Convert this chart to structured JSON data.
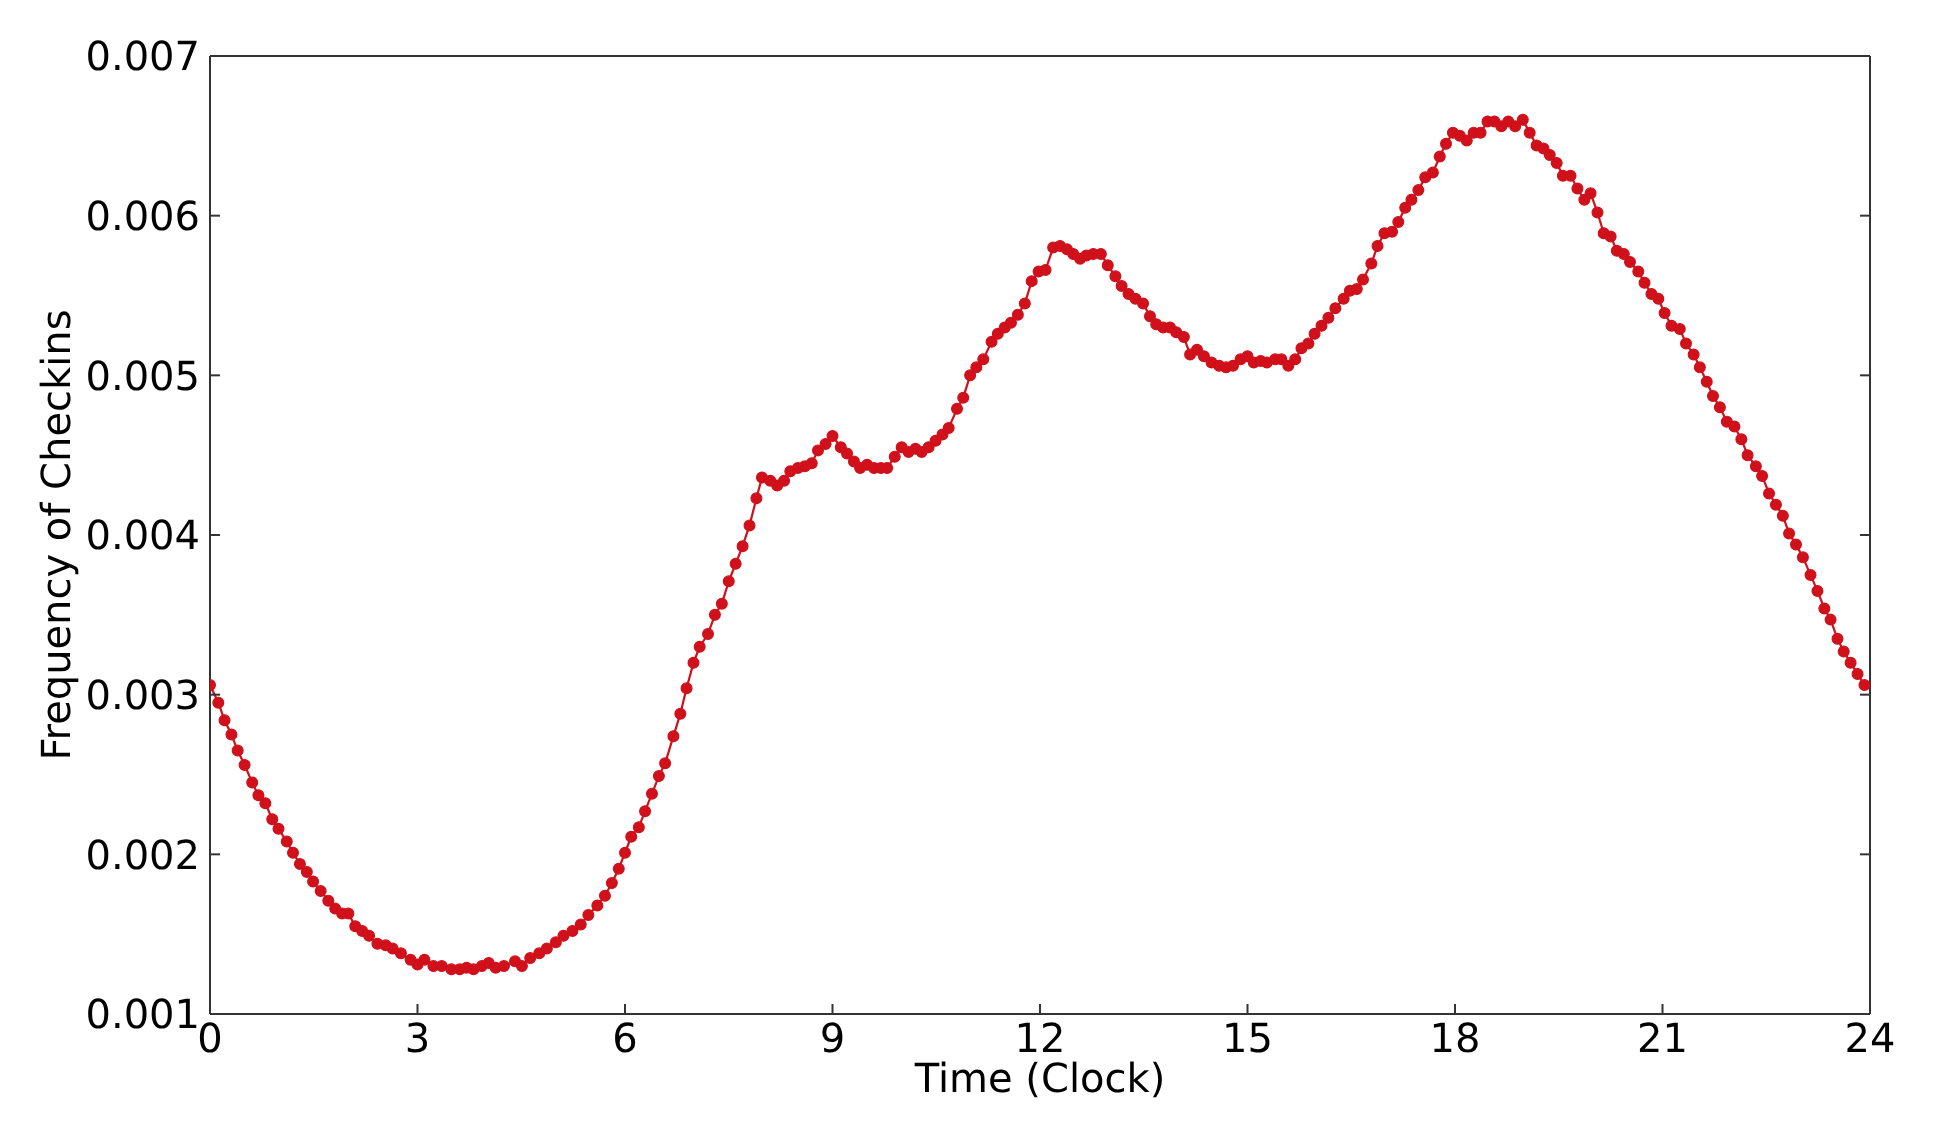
{
  "chart_data": {
    "type": "line",
    "xlabel": "Time (Clock)",
    "ylabel": "Frequency of Checkins",
    "x": [
      0,
      0.12,
      0.21,
      0.31,
      0.4,
      0.5,
      0.61,
      0.7,
      0.8,
      0.9,
      0.99,
      1.11,
      1.2,
      1.3,
      1.4,
      1.49,
      1.6,
      1.71,
      1.81,
      1.91,
      2.0,
      2.1,
      2.2,
      2.3,
      2.42,
      2.54,
      2.64,
      2.76,
      2.9,
      3.0,
      3.1,
      3.23,
      3.35,
      3.49,
      3.61,
      3.71,
      3.81,
      3.93,
      4.03,
      4.13,
      4.25,
      4.41,
      4.51,
      4.63,
      4.76,
      4.87,
      5.0,
      5.11,
      5.24,
      5.36,
      5.47,
      5.6,
      5.71,
      5.81,
      5.91,
      6.0,
      6.09,
      6.2,
      6.29,
      6.39,
      6.49,
      6.58,
      6.7,
      6.8,
      6.89,
      6.99,
      7.08,
      7.2,
      7.3,
      7.4,
      7.5,
      7.6,
      7.7,
      7.8,
      7.9,
      7.98,
      8.1,
      8.2,
      8.3,
      8.39,
      8.5,
      8.6,
      8.7,
      8.79,
      8.9,
      9.0,
      9.12,
      9.21,
      9.31,
      9.4,
      9.5,
      9.6,
      9.7,
      9.79,
      9.9,
      10.0,
      10.1,
      10.2,
      10.29,
      10.39,
      10.49,
      10.59,
      10.68,
      10.8,
      10.89,
      10.99,
      11.08,
      11.18,
      11.3,
      11.39,
      11.49,
      11.58,
      11.68,
      11.78,
      11.88,
      11.98,
      12.08,
      12.19,
      12.29,
      12.39,
      12.48,
      12.58,
      12.67,
      12.77,
      12.88,
      12.98,
      13.09,
      13.18,
      13.28,
      13.38,
      13.49,
      13.59,
      13.68,
      13.78,
      13.88,
      13.97,
      14.08,
      14.17,
      14.27,
      14.37,
      14.48,
      14.59,
      14.69,
      14.79,
      14.9,
      15.0,
      15.09,
      15.19,
      15.28,
      15.4,
      15.49,
      15.59,
      15.69,
      15.78,
      15.88,
      15.97,
      16.07,
      16.17,
      16.27,
      16.39,
      16.48,
      16.58,
      16.67,
      16.79,
      16.88,
      16.98,
      17.09,
      17.18,
      17.28,
      17.37,
      17.47,
      17.57,
      17.68,
      17.78,
      17.87,
      17.97,
      18.07,
      18.17,
      18.27,
      18.37,
      18.47,
      18.57,
      18.67,
      18.77,
      18.87,
      18.98,
      19.08,
      19.18,
      19.28,
      19.37,
      19.47,
      19.56,
      19.67,
      19.77,
      19.87,
      19.96,
      20.06,
      20.15,
      20.25,
      20.34,
      20.44,
      20.53,
      20.65,
      20.74,
      20.84,
      20.94,
      21.03,
      21.13,
      21.25,
      21.34,
      21.45,
      21.54,
      21.64,
      21.73,
      21.83,
      21.93,
      22.04,
      22.14,
      22.23,
      22.35,
      22.44,
      22.54,
      22.64,
      22.74,
      22.83,
      22.93,
      23.03,
      23.14,
      23.24,
      23.34,
      23.43,
      23.53,
      23.62,
      23.72,
      23.82,
      23.92
    ],
    "series": [
      {
        "color": "#d0101a",
        "values": [
          0.00306,
          0.00295,
          0.00284,
          0.00275,
          0.00265,
          0.00256,
          0.00245,
          0.00237,
          0.00232,
          0.00222,
          0.00216,
          0.00208,
          0.00201,
          0.00194,
          0.00189,
          0.00183,
          0.00177,
          0.00171,
          0.00166,
          0.00163,
          0.00163,
          0.00155,
          0.00152,
          0.00149,
          0.00144,
          0.00143,
          0.00141,
          0.00138,
          0.00134,
          0.00131,
          0.00134,
          0.0013,
          0.0013,
          0.00128,
          0.00128,
          0.00129,
          0.00128,
          0.0013,
          0.00132,
          0.00129,
          0.0013,
          0.00133,
          0.0013,
          0.00135,
          0.00138,
          0.00141,
          0.00145,
          0.00149,
          0.00152,
          0.00156,
          0.00162,
          0.00168,
          0.00174,
          0.00182,
          0.00191,
          0.00201,
          0.00211,
          0.00217,
          0.00227,
          0.00238,
          0.00249,
          0.00257,
          0.00274,
          0.00288,
          0.00304,
          0.0032,
          0.0033,
          0.00338,
          0.0035,
          0.00357,
          0.00371,
          0.00382,
          0.00393,
          0.00406,
          0.00423,
          0.00436,
          0.00434,
          0.00431,
          0.00434,
          0.0044,
          0.00442,
          0.00443,
          0.00445,
          0.00453,
          0.00457,
          0.00462,
          0.00455,
          0.00451,
          0.00446,
          0.00442,
          0.00444,
          0.00442,
          0.00442,
          0.00442,
          0.00449,
          0.00455,
          0.00452,
          0.00454,
          0.00452,
          0.00455,
          0.00459,
          0.00463,
          0.00467,
          0.00479,
          0.00486,
          0.005,
          0.00505,
          0.0051,
          0.00521,
          0.00526,
          0.0053,
          0.00533,
          0.00538,
          0.00545,
          0.00559,
          0.00565,
          0.00566,
          0.0058,
          0.00581,
          0.00579,
          0.00576,
          0.00573,
          0.00575,
          0.00576,
          0.00576,
          0.00569,
          0.00562,
          0.00556,
          0.00551,
          0.00548,
          0.00545,
          0.00537,
          0.00532,
          0.0053,
          0.0053,
          0.00527,
          0.00524,
          0.00513,
          0.00516,
          0.00512,
          0.00508,
          0.00506,
          0.00505,
          0.00506,
          0.0051,
          0.00512,
          0.00508,
          0.00509,
          0.00508,
          0.0051,
          0.0051,
          0.00506,
          0.0051,
          0.00517,
          0.0052,
          0.00526,
          0.00531,
          0.00536,
          0.00542,
          0.00548,
          0.00553,
          0.00554,
          0.0056,
          0.0057,
          0.00581,
          0.00589,
          0.0059,
          0.00596,
          0.00605,
          0.0061,
          0.00616,
          0.00624,
          0.00627,
          0.00637,
          0.00645,
          0.00652,
          0.0065,
          0.00647,
          0.00652,
          0.00652,
          0.00659,
          0.00659,
          0.00656,
          0.00659,
          0.00656,
          0.0066,
          0.00652,
          0.00644,
          0.00642,
          0.00638,
          0.00633,
          0.00625,
          0.00625,
          0.00617,
          0.0061,
          0.00614,
          0.00602,
          0.00589,
          0.00587,
          0.00578,
          0.00576,
          0.00571,
          0.00565,
          0.00558,
          0.00551,
          0.00548,
          0.00539,
          0.00531,
          0.00529,
          0.0052,
          0.00513,
          0.00505,
          0.00496,
          0.00487,
          0.0048,
          0.00471,
          0.00468,
          0.0046,
          0.0045,
          0.00443,
          0.00437,
          0.00426,
          0.00419,
          0.00412,
          0.00401,
          0.00394,
          0.00386,
          0.00375,
          0.00365,
          0.00354,
          0.00347,
          0.00335,
          0.00327,
          0.0032,
          0.00313,
          0.00306
        ]
      }
    ],
    "xlim": [
      0,
      24
    ],
    "xticks": [
      0,
      3,
      6,
      9,
      12,
      15,
      18,
      21,
      24
    ],
    "ylim": [
      0.001,
      0.007
    ],
    "yticks": [
      0.001,
      0.002,
      0.003,
      0.004,
      0.005,
      0.006,
      0.007
    ],
    "marker": "circle",
    "line_style": "solid"
  }
}
